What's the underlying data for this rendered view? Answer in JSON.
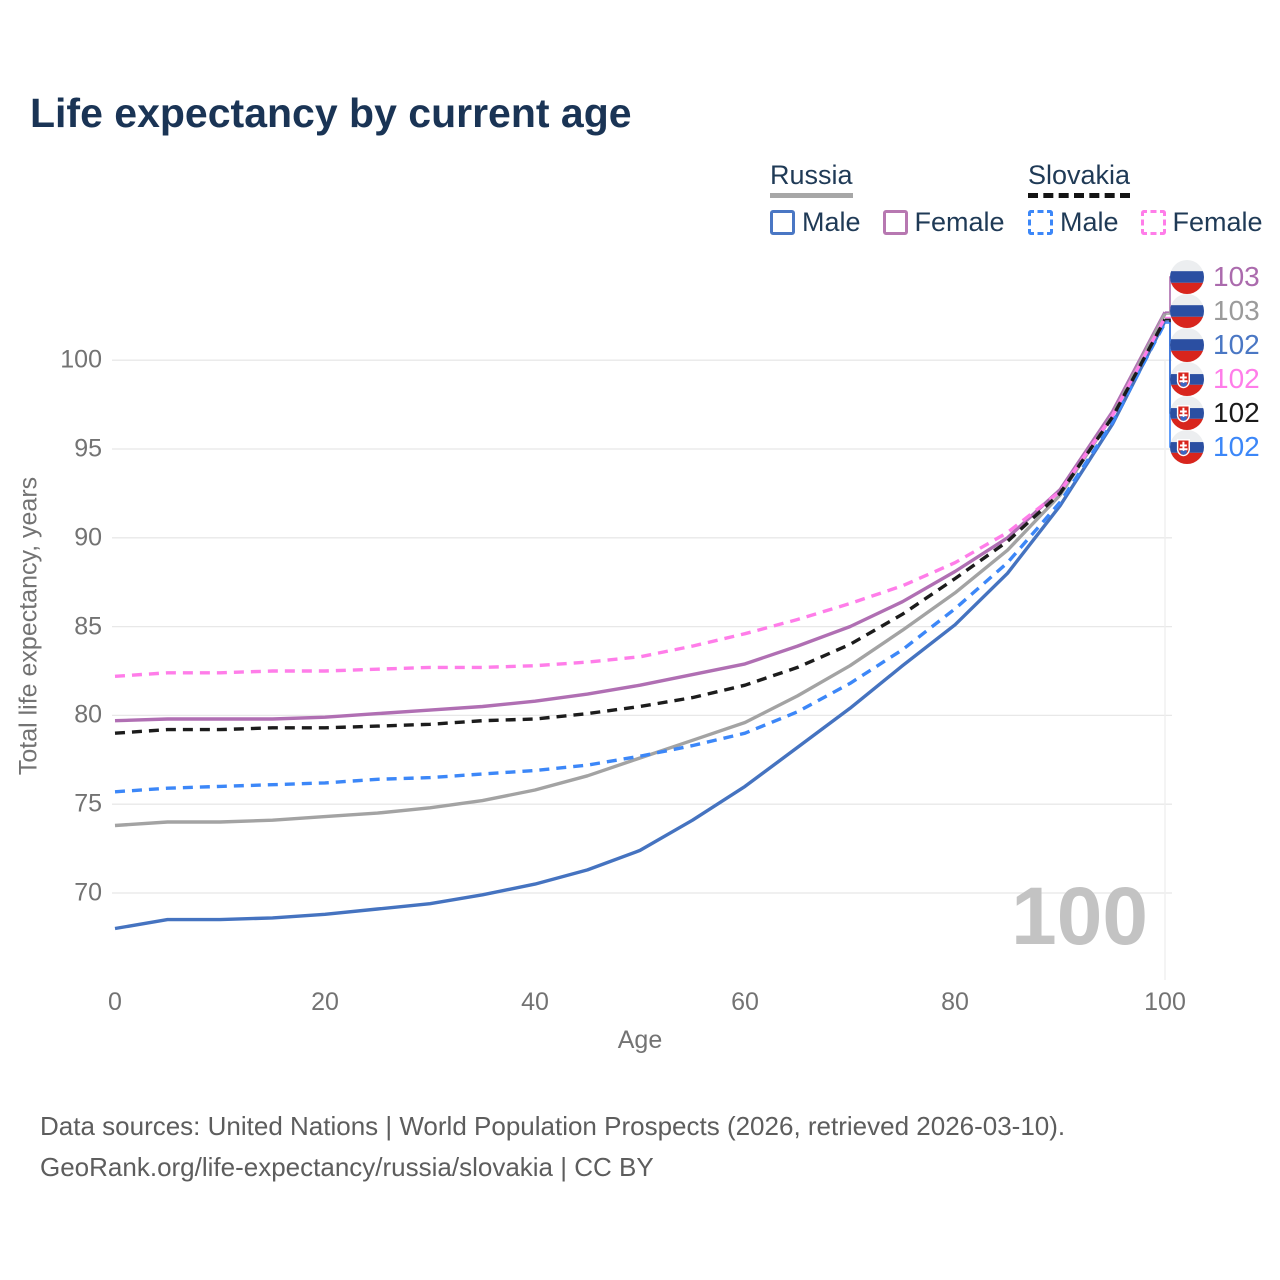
{
  "title": "Life expectancy by current age",
  "legend": {
    "groups": [
      {
        "label": "Russia",
        "line_style": "solid",
        "swatch_color": "#a7a7a7",
        "items": [
          {
            "label": "Male",
            "color": "#4a77c4"
          },
          {
            "label": "Female",
            "color": "#b778b1"
          }
        ]
      },
      {
        "label": "Slovakia",
        "line_style": "dashed",
        "swatch_color": "#141414",
        "items": [
          {
            "label": "Male",
            "color": "#3c87f8"
          },
          {
            "label": "Female",
            "color": "#ff7de9"
          }
        ]
      }
    ]
  },
  "y_axis": {
    "label": "Total life expectancy, years",
    "ticks": [
      70,
      75,
      80,
      85,
      90,
      95,
      100
    ]
  },
  "x_axis": {
    "label": "Age",
    "ticks": [
      0,
      20,
      40,
      60,
      80,
      100
    ]
  },
  "watermark": "100",
  "end_labels": [
    {
      "value": "103",
      "color": "#ab6bad",
      "flag": "russia",
      "series_index": 1
    },
    {
      "value": "103",
      "color": "#9b9b9b",
      "flag": "russia",
      "series_index": 2
    },
    {
      "value": "102",
      "color": "#4a77c4",
      "flag": "russia",
      "series_index": 0
    },
    {
      "value": "102",
      "color": "#ff7de9",
      "flag": "slovakia",
      "series_index": 4
    },
    {
      "value": "102",
      "color": "#1a1a1a",
      "flag": "slovakia",
      "series_index": 5
    },
    {
      "value": "102",
      "color": "#3c87f8",
      "flag": "slovakia",
      "series_index": 3
    }
  ],
  "footer": {
    "line1": "Data sources: United Nations | World Population Prospects (2026, retrieved 2026-03-10).",
    "line2": "GeoRank.org/life-expectancy/russia/slovakia | CC BY"
  },
  "chart_data": {
    "type": "line",
    "title": "Life expectancy by current age",
    "xlabel": "Age",
    "ylabel": "Total life expectancy, years",
    "xlim": [
      0,
      100
    ],
    "ylim": [
      67,
      103.5
    ],
    "x_ticks": [
      0,
      20,
      40,
      60,
      80,
      100
    ],
    "y_ticks": [
      70,
      75,
      80,
      85,
      90,
      95,
      100
    ],
    "grid": "horizontal",
    "legend_position": "top-right",
    "ages": [
      0,
      5,
      10,
      15,
      20,
      25,
      30,
      35,
      40,
      45,
      50,
      55,
      60,
      65,
      70,
      75,
      80,
      85,
      90,
      95,
      100
    ],
    "series": [
      {
        "name": "Russia Male",
        "country": "Russia",
        "sex": "Male",
        "color": "#4573c0",
        "dash": false,
        "values": [
          68.0,
          68.5,
          68.5,
          68.6,
          68.8,
          69.1,
          69.4,
          69.9,
          70.5,
          71.3,
          72.4,
          74.1,
          76.0,
          78.2,
          80.4,
          82.8,
          85.1,
          88.0,
          91.8,
          96.4,
          102.2
        ]
      },
      {
        "name": "Russia Female",
        "country": "Russia",
        "sex": "Female",
        "color": "#b06fb3",
        "dash": false,
        "values": [
          79.7,
          79.8,
          79.8,
          79.8,
          79.9,
          80.1,
          80.3,
          80.5,
          80.8,
          81.2,
          81.7,
          82.3,
          82.9,
          83.9,
          85.0,
          86.4,
          88.1,
          90.0,
          92.7,
          97.1,
          102.7
        ]
      },
      {
        "name": "Russia Both sexes",
        "country": "Russia",
        "sex": "Both",
        "color": "#a3a3a3",
        "dash": false,
        "values": [
          73.8,
          74.0,
          74.0,
          74.1,
          74.3,
          74.5,
          74.8,
          75.2,
          75.8,
          76.6,
          77.6,
          78.6,
          79.6,
          81.1,
          82.8,
          84.8,
          86.9,
          89.3,
          92.4,
          96.9,
          102.6
        ]
      },
      {
        "name": "Slovakia Male",
        "country": "Slovakia",
        "sex": "Male",
        "color": "#3c87f8",
        "dash": true,
        "values": [
          75.7,
          75.9,
          76.0,
          76.1,
          76.2,
          76.4,
          76.5,
          76.7,
          76.9,
          77.2,
          77.7,
          78.3,
          79.0,
          80.2,
          81.8,
          83.7,
          86.0,
          88.6,
          92.0,
          96.5,
          102.1
        ]
      },
      {
        "name": "Slovakia Female",
        "country": "Slovakia",
        "sex": "Female",
        "color": "#ff7de9",
        "dash": true,
        "values": [
          82.2,
          82.4,
          82.4,
          82.5,
          82.5,
          82.6,
          82.7,
          82.7,
          82.8,
          83.0,
          83.3,
          83.9,
          84.6,
          85.4,
          86.3,
          87.3,
          88.6,
          90.3,
          92.6,
          96.9,
          102.4
        ]
      },
      {
        "name": "Slovakia Both sexes",
        "country": "Slovakia",
        "sex": "Both",
        "color": "#1c1c1c",
        "dash": true,
        "values": [
          79.0,
          79.2,
          79.2,
          79.3,
          79.3,
          79.4,
          79.5,
          79.7,
          79.8,
          80.1,
          80.5,
          81.0,
          81.7,
          82.7,
          84.0,
          85.7,
          87.7,
          89.8,
          92.5,
          96.8,
          102.3
        ]
      }
    ]
  }
}
